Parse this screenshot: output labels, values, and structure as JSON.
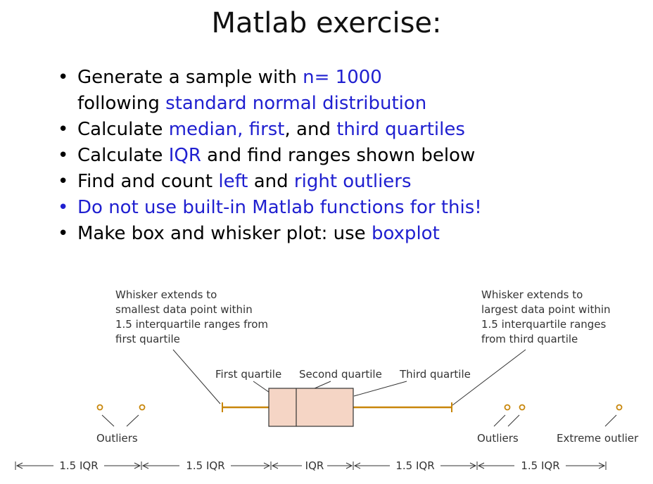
{
  "title": "Matlab exercise:",
  "colors": {
    "highlight": "#1f1fd0",
    "whisker": "#c8860a",
    "box_fill": "#f5d5c5",
    "box_stroke": "#333333"
  },
  "bullets": [
    {
      "line1": {
        "prefix": "Generate a sample with ",
        "highlight": "n= 1000"
      },
      "line2": {
        "prefix": "following ",
        "highlight": "standard normal distribution"
      }
    },
    {
      "prefix": "Calculate ",
      "h1": "median, first",
      "mid": ", and ",
      "h2": "third quartiles"
    },
    {
      "prefix": "Calculate ",
      "h1": "IQR",
      "mid": " and find ranges shown below"
    },
    {
      "prefix": "Find and count ",
      "h1": "left",
      "mid": " and ",
      "h2": "right outliers"
    },
    {
      "text": "Do not use built-in Matlab functions for this!"
    },
    {
      "prefix": "Make box and whisker plot: use ",
      "h1": "boxplot"
    }
  ],
  "diagram": {
    "left_note": [
      "Whisker extends to",
      "smallest data point within",
      "1.5 interquartile ranges from",
      "first quartile"
    ],
    "right_note": [
      "Whisker extends to",
      "largest data point within",
      "1.5 interquartile ranges",
      "from third quartile"
    ],
    "first_quartile": "First quartile",
    "second_quartile": "Second quartile",
    "third_quartile": "Third quartile",
    "outliers_left": "Outliers",
    "outliers_right": "Outliers",
    "extreme_outlier": "Extreme outlier",
    "scale": [
      "1.5 IQR",
      "1.5 IQR",
      "IQR",
      "1.5 IQR",
      "1.5 IQR"
    ]
  }
}
